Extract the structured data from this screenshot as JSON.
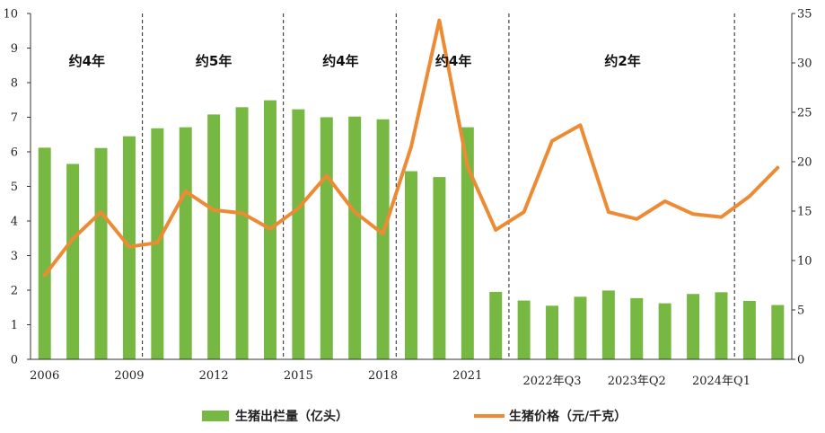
{
  "chart_data": {
    "type": "bar+line",
    "x": [
      "2006",
      "2007",
      "2008",
      "2009",
      "2010",
      "2011",
      "2012",
      "2013",
      "2014",
      "2015",
      "2016",
      "2017",
      "2018",
      "2019",
      "2020",
      "2021",
      "2022Q1",
      "2022Q2",
      "2022Q3",
      "2022Q4",
      "2023Q1",
      "2023Q2",
      "2023Q3",
      "2023Q4",
      "2024Q1",
      "2024Q2",
      "2024Q3"
    ],
    "x_tick_labels": [
      {
        "index": 0,
        "label": "2006"
      },
      {
        "index": 3,
        "label": "2009"
      },
      {
        "index": 6,
        "label": "2012"
      },
      {
        "index": 9,
        "label": "2015"
      },
      {
        "index": 12,
        "label": "2018"
      },
      {
        "index": 15,
        "label": "2021"
      },
      {
        "index": 18,
        "label": "2022年Q3"
      },
      {
        "index": 21,
        "label": "2023年Q2"
      },
      {
        "index": 24,
        "label": "2024年Q1"
      }
    ],
    "series": [
      {
        "name": "生猪出栏量（亿头）",
        "type": "bar",
        "axis": "left",
        "color": "#77B843",
        "values": [
          6.12,
          5.65,
          6.11,
          6.45,
          6.68,
          6.71,
          7.08,
          7.29,
          7.49,
          7.23,
          7.0,
          7.02,
          6.94,
          5.44,
          5.27,
          6.71,
          1.95,
          1.7,
          1.55,
          1.81,
          1.99,
          1.77,
          1.62,
          1.89,
          1.94,
          1.69,
          1.57
        ]
      },
      {
        "name": "生猪价格（元/千克）",
        "type": "line",
        "axis": "right",
        "color": "#ED8B35",
        "values": [
          8.5,
          12.2,
          14.9,
          11.4,
          11.8,
          17.0,
          15.1,
          14.8,
          13.2,
          15.3,
          18.6,
          14.9,
          12.7,
          21.5,
          34.3,
          19.5,
          13.1,
          14.9,
          22.1,
          23.7,
          14.9,
          14.2,
          16.0,
          14.7,
          14.4,
          16.5,
          19.4
        ]
      }
    ],
    "y_left": {
      "min": 0,
      "max": 10,
      "ticks": [
        0,
        1,
        2,
        3,
        4,
        5,
        6,
        7,
        8,
        9,
        10
      ]
    },
    "y_right": {
      "min": 0,
      "max": 35,
      "ticks": [
        0,
        5,
        10,
        15,
        20,
        25,
        30,
        35
      ]
    },
    "dividers_after_index": [
      3,
      8,
      12,
      16,
      24
    ],
    "periods": [
      {
        "label": "约4年",
        "from": 0,
        "to": 3
      },
      {
        "label": "约5年",
        "from": 3,
        "to": 8
      },
      {
        "label": "约4年",
        "from": 8,
        "to": 12
      },
      {
        "label": "约4年",
        "from": 12,
        "to": 16
      },
      {
        "label": "约2年",
        "from": 16,
        "to": 26
      }
    ],
    "legend_placement": "bottom"
  }
}
